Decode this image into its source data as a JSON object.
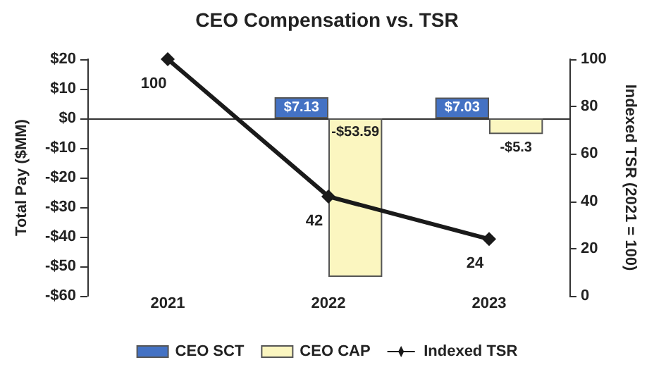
{
  "chart_data": {
    "type": "bar",
    "title": "CEO Compensation vs. TSR",
    "ylabel": "Total Pay ($MM)",
    "y2label": "Indexed TSR (2021 = 100)",
    "categories": [
      "2021",
      "2022",
      "2023"
    ],
    "series": [
      {
        "name": "CEO SCT",
        "color": "#4472c4",
        "values": [
          null,
          7.13,
          7.03
        ],
        "value_labels": [
          null,
          "$7.13",
          "$7.03"
        ]
      },
      {
        "name": "CEO CAP",
        "color": "#fbf6c0",
        "values": [
          null,
          -53.59,
          -5.3
        ],
        "value_labels": [
          null,
          "-$53.59",
          "-$5.3"
        ]
      },
      {
        "name": "Indexed TSR",
        "type": "line",
        "axis": "y2",
        "color": "#1a1a1a",
        "marker": "diamond",
        "values": [
          100,
          42,
          24
        ],
        "value_labels": [
          "100",
          "42",
          "24"
        ]
      }
    ],
    "ylim": [
      -60,
      20
    ],
    "yticks": [
      {
        "value": -60,
        "label": "-$60"
      },
      {
        "value": -50,
        "label": "-$50"
      },
      {
        "value": -40,
        "label": "-$40"
      },
      {
        "value": -30,
        "label": "-$30"
      },
      {
        "value": -20,
        "label": "-$20"
      },
      {
        "value": -10,
        "label": "-$10"
      },
      {
        "value": 0,
        "label": "$0"
      },
      {
        "value": 10,
        "label": "$10"
      },
      {
        "value": 20,
        "label": "$20"
      }
    ],
    "y2lim": [
      0,
      100
    ],
    "y2ticks": [
      0,
      20,
      40,
      60,
      80,
      100
    ],
    "legend": "bottom"
  }
}
